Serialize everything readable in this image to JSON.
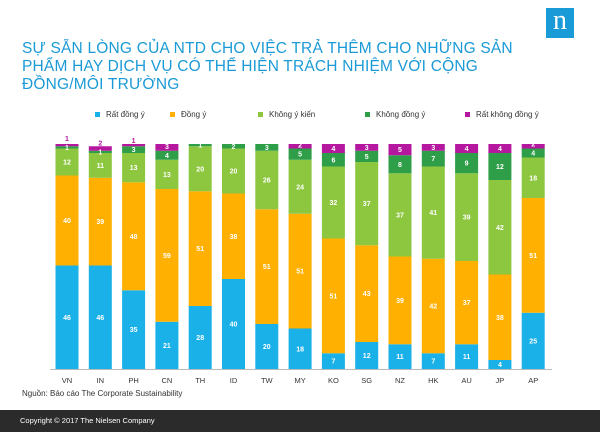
{
  "title": "SỰ SẴN LÒNG CỦA NTD CHO VIỆC TRẢ THÊM CHO NHỮNG SẢN PHẨM HAY DỊCH VỤ CÓ THỂ HIỆN TRÁCH NHIỆM VỚI CỘNG ĐỒNG/MÔI TRƯỜNG",
  "logo": "n",
  "source": "Nguồn:   Báo cáo The Corporate Sustainability",
  "footer": "Copyright © 2017  The Nielsen Company",
  "chart_data": {
    "type": "bar",
    "stacked": true,
    "ylim": [
      0,
      100
    ],
    "legend": "top",
    "categories": [
      "VN",
      "IN",
      "PH",
      "CN",
      "TH",
      "ID",
      "TW",
      "MY",
      "KO",
      "SG",
      "NZ",
      "HK",
      "AU",
      "JP",
      "AP"
    ],
    "series": [
      {
        "name": "Rất đồng ý",
        "color": "#1ab0e8",
        "values": [
          46,
          46,
          35,
          21,
          28,
          40,
          20,
          18,
          7,
          12,
          11,
          7,
          11,
          4,
          25
        ]
      },
      {
        "name": "Đồng ý",
        "color": "#ffb000",
        "values": [
          40,
          39,
          48,
          59,
          51,
          38,
          51,
          51,
          51,
          43,
          39,
          42,
          37,
          38,
          51
        ]
      },
      {
        "name": "Không ý kiến",
        "color": "#8dc63f",
        "values": [
          12,
          11,
          13,
          13,
          20,
          20,
          26,
          24,
          32,
          37,
          37,
          41,
          39,
          42,
          18
        ]
      },
      {
        "name": "Không đồng ý",
        "color": "#2e9e48",
        "values": [
          1,
          1,
          3,
          4,
          1,
          2,
          3,
          5,
          6,
          5,
          8,
          7,
          9,
          12,
          4
        ]
      },
      {
        "name": "Rất không đồng ý",
        "color": "#b5179e",
        "values": [
          1,
          2,
          1,
          3,
          0,
          0,
          0,
          2,
          4,
          3,
          5,
          3,
          4,
          4,
          2
        ]
      }
    ]
  }
}
